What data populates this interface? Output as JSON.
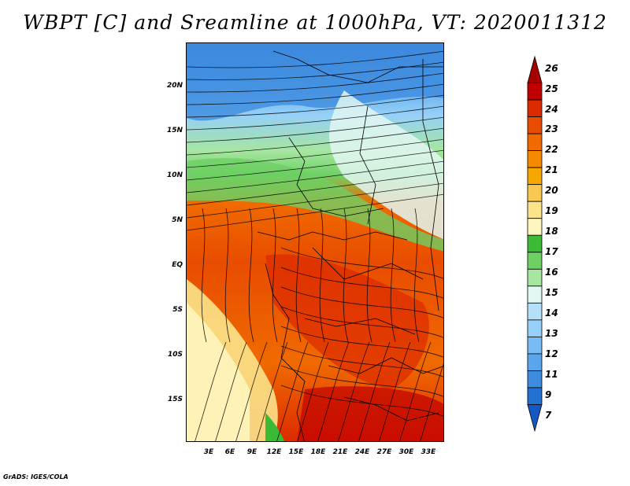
{
  "title": "WBPT [C] and Sreamline at 1000hPa, VT: 2020011312",
  "footer": "GrADS: IGES/COLA",
  "map": {
    "lat_labels": [
      "20N",
      "15N",
      "10N",
      "5N",
      "EQ",
      "5S",
      "10S",
      "15S"
    ],
    "lon_labels": [
      "3E",
      "6E",
      "9E",
      "12E",
      "15E",
      "18E",
      "21E",
      "24E",
      "27E",
      "30E",
      "33E"
    ],
    "field": "Wet-bulb potential temperature at 1000hPa (C)",
    "overlay": "Streamlines"
  },
  "colorbar": {
    "labels": [
      "26",
      "25",
      "24",
      "23",
      "22",
      "21",
      "20",
      "19",
      "18",
      "17",
      "16",
      "15",
      "14",
      "13",
      "12",
      "11",
      "9",
      "7"
    ],
    "colors": [
      "#a50000",
      "#c00000",
      "#dc2a00",
      "#e84c00",
      "#f06a00",
      "#f58a00",
      "#f7a800",
      "#fac850",
      "#fbe38a",
      "#fff5be",
      "#3cba36",
      "#6ed064",
      "#a6e6a0",
      "#e2f7f2",
      "#b4e0fa",
      "#96d0f8",
      "#78bcf5",
      "#5aa6ee",
      "#3e8cde",
      "#2270d0",
      "#1458c4"
    ]
  }
}
